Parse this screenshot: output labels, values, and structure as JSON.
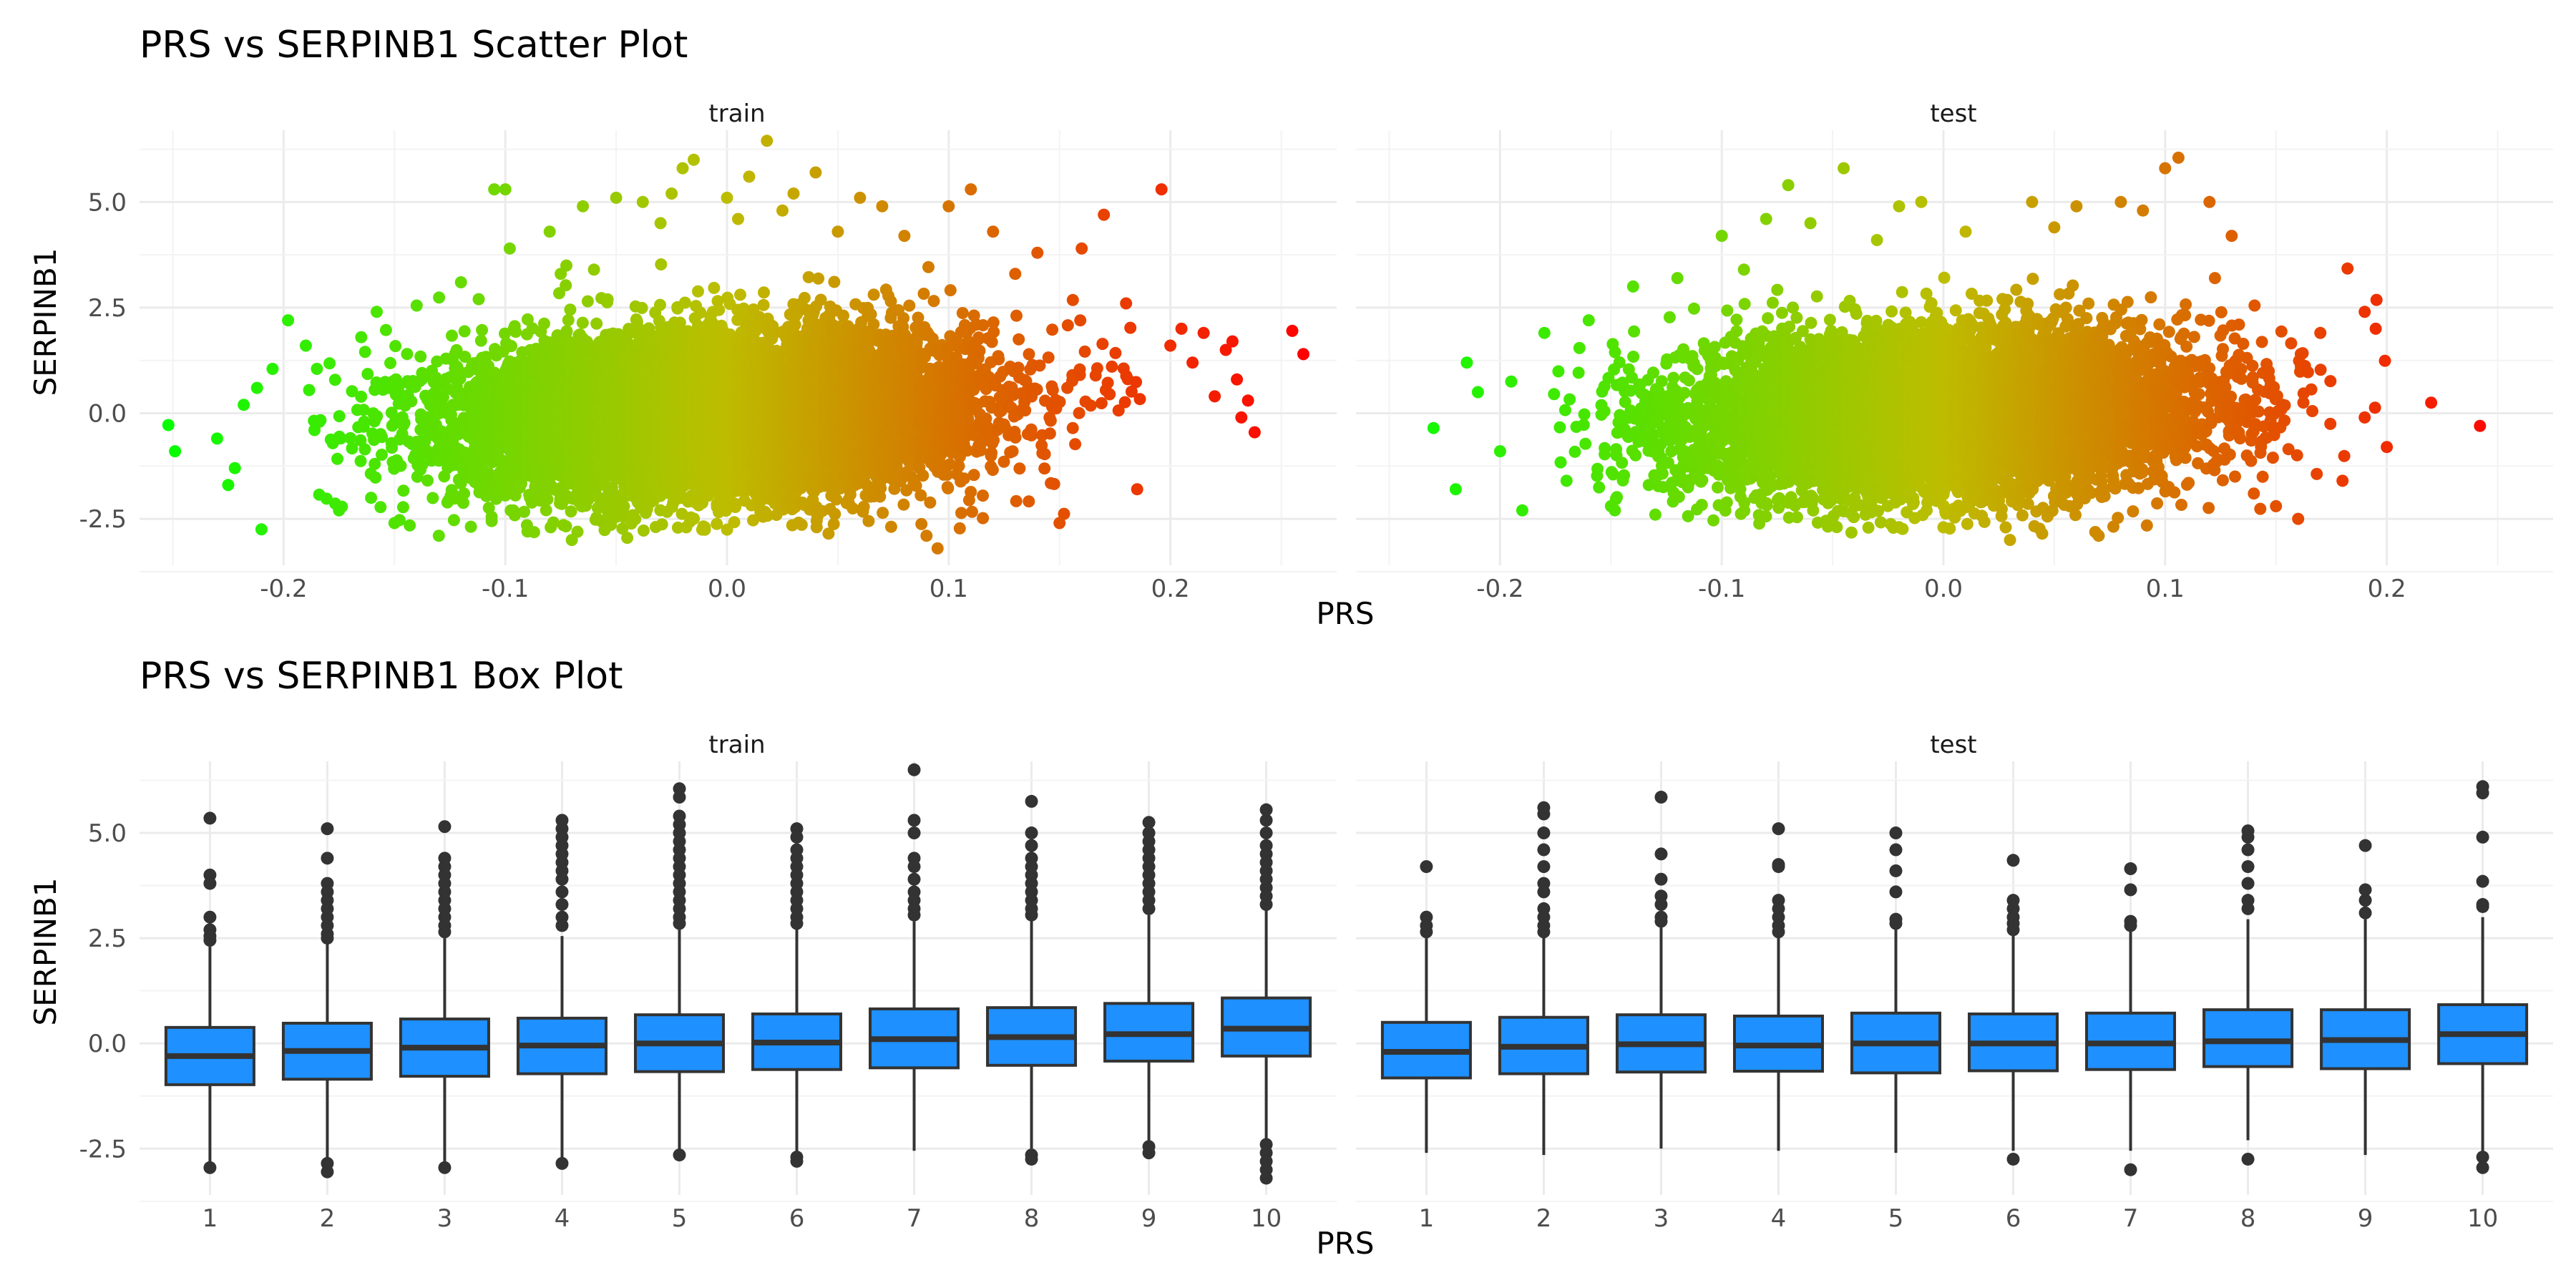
{
  "chart_data": [
    {
      "type": "scatter",
      "title": "PRS vs SERPINB1 Scatter Plot",
      "xlabel": "PRS",
      "ylabel": "SERPINB1",
      "xlim": [
        -0.265,
        0.275
      ],
      "ylim": [
        -3.6,
        6.7
      ],
      "x_ticks": [
        -0.2,
        -0.1,
        0.0,
        0.1,
        0.2
      ],
      "x_tick_labels": [
        "-0.2",
        "-0.1",
        "0.0",
        "0.1",
        "0.2"
      ],
      "y_ticks": [
        -2.5,
        0.0,
        2.5,
        5.0
      ],
      "y_tick_labels": [
        "-2.5",
        "0.0",
        "2.5",
        "5.0"
      ],
      "grid": true,
      "color_scale": {
        "low": "#00ff00",
        "mid": "#bdbd00",
        "high": "#ff0000",
        "range": [
          -0.26,
          0.26
        ]
      },
      "facets": [
        {
          "label": "train",
          "points": [
            [
              -0.252,
              -0.28
            ],
            [
              -0.249,
              -0.9
            ],
            [
              -0.23,
              -0.6
            ],
            [
              -0.225,
              -1.7
            ],
            [
              -0.222,
              -1.3
            ],
            [
              -0.218,
              0.2
            ],
            [
              -0.212,
              0.6
            ],
            [
              -0.21,
              -2.75
            ],
            [
              -0.205,
              1.05
            ],
            [
              -0.198,
              2.2
            ],
            [
              -0.19,
              1.6
            ],
            [
              -0.185,
              1.05
            ],
            [
              -0.175,
              -2.3
            ],
            [
              -0.165,
              1.8
            ],
            [
              -0.158,
              2.4
            ],
            [
              -0.15,
              -2.6
            ],
            [
              -0.14,
              2.55
            ],
            [
              -0.13,
              -2.9
            ],
            [
              -0.12,
              3.1
            ],
            [
              -0.112,
              2.7
            ],
            [
              -0.105,
              5.3
            ],
            [
              -0.1,
              5.3
            ],
            [
              -0.098,
              3.9
            ],
            [
              -0.09,
              -2.8
            ],
            [
              -0.08,
              4.3
            ],
            [
              -0.075,
              3.3
            ],
            [
              -0.07,
              -3.0
            ],
            [
              -0.065,
              4.9
            ],
            [
              -0.06,
              3.4
            ],
            [
              -0.05,
              5.1
            ],
            [
              -0.045,
              -2.95
            ],
            [
              -0.038,
              5.0
            ],
            [
              -0.03,
              4.5
            ],
            [
              -0.025,
              5.2
            ],
            [
              -0.02,
              5.8
            ],
            [
              -0.015,
              6.0
            ],
            [
              -0.01,
              -2.7
            ],
            [
              0.0,
              5.1
            ],
            [
              0.005,
              4.6
            ],
            [
              0.01,
              5.6
            ],
            [
              0.018,
              6.45
            ],
            [
              0.025,
              4.8
            ],
            [
              0.03,
              5.2
            ],
            [
              0.04,
              5.7
            ],
            [
              0.05,
              4.3
            ],
            [
              0.06,
              5.1
            ],
            [
              0.07,
              4.9
            ],
            [
              0.08,
              4.2
            ],
            [
              0.09,
              -2.9
            ],
            [
              0.095,
              -3.2
            ],
            [
              0.1,
              4.9
            ],
            [
              0.11,
              5.3
            ],
            [
              0.12,
              4.3
            ],
            [
              0.13,
              3.3
            ],
            [
              0.14,
              3.8
            ],
            [
              0.15,
              -2.6
            ],
            [
              0.16,
              3.9
            ],
            [
              0.17,
              4.7
            ],
            [
              0.18,
              2.6
            ],
            [
              0.185,
              -1.8
            ],
            [
              0.196,
              5.3
            ],
            [
              0.2,
              1.6
            ],
            [
              0.205,
              2.0
            ],
            [
              0.21,
              1.2
            ],
            [
              0.215,
              1.9
            ],
            [
              0.22,
              0.4
            ],
            [
              0.225,
              1.5
            ],
            [
              0.228,
              1.7
            ],
            [
              0.23,
              0.8
            ],
            [
              0.232,
              -0.1
            ],
            [
              0.235,
              0.3
            ],
            [
              0.238,
              -0.45
            ],
            [
              0.255,
              1.95
            ],
            [
              0.26,
              1.4
            ]
          ],
          "cloud": {
            "x_mean": -0.005,
            "x_sd": 0.058,
            "x_range": [
              -0.19,
              0.2
            ],
            "y_mean": 0.0,
            "y_sd": 0.95,
            "y_range": [
              -2.9,
              3.9
            ],
            "n": 9000
          }
        },
        {
          "label": "test",
          "points": [
            [
              -0.23,
              -0.35
            ],
            [
              -0.22,
              -1.8
            ],
            [
              -0.215,
              1.2
            ],
            [
              -0.21,
              0.5
            ],
            [
              -0.2,
              -0.9
            ],
            [
              -0.195,
              0.75
            ],
            [
              -0.19,
              -2.3
            ],
            [
              -0.18,
              1.9
            ],
            [
              -0.17,
              -1.6
            ],
            [
              -0.16,
              2.2
            ],
            [
              -0.15,
              -2.2
            ],
            [
              -0.14,
              3.0
            ],
            [
              -0.13,
              -2.4
            ],
            [
              -0.12,
              3.2
            ],
            [
              -0.1,
              4.2
            ],
            [
              -0.09,
              3.4
            ],
            [
              -0.08,
              4.6
            ],
            [
              -0.07,
              5.4
            ],
            [
              -0.06,
              4.5
            ],
            [
              -0.05,
              -2.6
            ],
            [
              -0.045,
              5.8
            ],
            [
              -0.03,
              4.1
            ],
            [
              -0.02,
              4.9
            ],
            [
              -0.01,
              5.0
            ],
            [
              0.0,
              -2.7
            ],
            [
              0.01,
              4.3
            ],
            [
              0.03,
              -3.0
            ],
            [
              0.04,
              5.0
            ],
            [
              0.05,
              4.4
            ],
            [
              0.06,
              4.9
            ],
            [
              0.07,
              -2.9
            ],
            [
              0.08,
              5.0
            ],
            [
              0.09,
              4.8
            ],
            [
              0.1,
              5.8
            ],
            [
              0.106,
              6.05
            ],
            [
              0.12,
              5.0
            ],
            [
              0.13,
              4.2
            ],
            [
              0.14,
              -1.9
            ],
            [
              0.15,
              -2.2
            ],
            [
              0.16,
              -2.5
            ],
            [
              0.17,
              1.9
            ],
            [
              0.18,
              -1.6
            ],
            [
              0.19,
              2.4
            ],
            [
              0.195,
              2.0
            ],
            [
              0.2,
              -0.8
            ],
            [
              0.19,
              -0.1
            ],
            [
              0.22,
              0.25
            ],
            [
              0.242,
              -0.3
            ]
          ],
          "cloud": {
            "x_mean": 0.0,
            "x_sd": 0.058,
            "x_range": [
              -0.18,
              0.2
            ],
            "y_mean": 0.0,
            "y_sd": 0.95,
            "y_range": [
              -2.9,
              3.9
            ],
            "n": 7500
          }
        }
      ]
    },
    {
      "type": "box",
      "title": "PRS vs SERPINB1 Box Plot",
      "xlabel": "PRS",
      "ylabel": "SERPINB1",
      "categories": [
        "1",
        "2",
        "3",
        "4",
        "5",
        "6",
        "7",
        "8",
        "9",
        "10"
      ],
      "ylim": [
        -3.6,
        6.7
      ],
      "y_ticks": [
        -2.5,
        0.0,
        2.5,
        5.0
      ],
      "y_tick_labels": [
        "-2.5",
        "0.0",
        "2.5",
        "5.0"
      ],
      "grid": true,
      "box_fill": "#1e90ff",
      "box_stroke": "#333333",
      "facets": [
        {
          "label": "train",
          "boxes": [
            {
              "q1": -0.98,
              "median": -0.3,
              "q3": 0.38,
              "lower": -2.9,
              "upper": 2.3,
              "outliers": [
                5.35,
                4.0,
                3.8,
                3.0,
                2.7,
                2.55,
                2.45,
                -2.95
              ]
            },
            {
              "q1": -0.85,
              "median": -0.18,
              "q3": 0.48,
              "lower": -2.7,
              "upper": 2.35,
              "outliers": [
                5.1,
                4.4,
                3.8,
                3.6,
                3.4,
                3.2,
                3.0,
                2.8,
                2.6,
                2.5,
                -2.85,
                -3.05
              ]
            },
            {
              "q1": -0.78,
              "median": -0.1,
              "q3": 0.58,
              "lower": -2.8,
              "upper": 2.5,
              "outliers": [
                5.15,
                4.4,
                4.2,
                4.0,
                3.8,
                3.6,
                3.4,
                3.2,
                3.0,
                2.8,
                2.65,
                -2.95
              ]
            },
            {
              "q1": -0.72,
              "median": -0.05,
              "q3": 0.6,
              "lower": -2.7,
              "upper": 2.55,
              "outliers": [
                5.3,
                5.1,
                4.9,
                4.7,
                4.5,
                4.3,
                4.1,
                3.9,
                3.6,
                3.3,
                3.0,
                2.8,
                -2.85
              ]
            },
            {
              "q1": -0.67,
              "median": 0.0,
              "q3": 0.68,
              "lower": -2.6,
              "upper": 2.7,
              "outliers": [
                6.05,
                5.85,
                5.4,
                5.2,
                5.0,
                4.8,
                4.6,
                4.4,
                4.2,
                4.0,
                3.8,
                3.6,
                3.4,
                3.2,
                3.0,
                2.85,
                -2.65
              ]
            },
            {
              "q1": -0.62,
              "median": 0.02,
              "q3": 0.7,
              "lower": -2.6,
              "upper": 2.75,
              "outliers": [
                5.1,
                4.9,
                4.6,
                4.4,
                4.2,
                4.0,
                3.8,
                3.6,
                3.4,
                3.2,
                3.0,
                2.85,
                -2.7,
                -2.8
              ]
            },
            {
              "q1": -0.58,
              "median": 0.1,
              "q3": 0.82,
              "lower": -2.55,
              "upper": 2.9,
              "outliers": [
                6.5,
                5.3,
                5.0,
                4.4,
                4.2,
                3.9,
                3.6,
                3.4,
                3.2,
                3.05
              ]
            },
            {
              "q1": -0.52,
              "median": 0.15,
              "q3": 0.85,
              "lower": -2.5,
              "upper": 2.95,
              "outliers": [
                5.75,
                5.0,
                4.7,
                4.4,
                4.2,
                4.0,
                3.8,
                3.6,
                3.4,
                3.2,
                3.05,
                -2.65,
                -2.75
              ]
            },
            {
              "q1": -0.42,
              "median": 0.22,
              "q3": 0.95,
              "lower": -2.35,
              "upper": 3.05,
              "outliers": [
                5.25,
                5.0,
                4.8,
                4.6,
                4.4,
                4.2,
                4.0,
                3.8,
                3.6,
                3.4,
                3.2,
                -2.45,
                -2.6
              ]
            },
            {
              "q1": -0.3,
              "median": 0.35,
              "q3": 1.08,
              "lower": -2.3,
              "upper": 3.2,
              "outliers": [
                5.55,
                5.3,
                5.0,
                4.7,
                4.5,
                4.3,
                4.1,
                3.9,
                3.7,
                3.5,
                3.3,
                -2.4,
                -2.6,
                -2.8,
                -3.0,
                -3.2
              ]
            }
          ]
        },
        {
          "label": "test",
          "boxes": [
            {
              "q1": -0.82,
              "median": -0.2,
              "q3": 0.5,
              "lower": -2.6,
              "upper": 2.5,
              "outliers": [
                4.2,
                3.0,
                2.8,
                2.65
              ]
            },
            {
              "q1": -0.72,
              "median": -0.08,
              "q3": 0.62,
              "lower": -2.65,
              "upper": 2.6,
              "outliers": [
                5.6,
                5.45,
                5.0,
                4.6,
                4.2,
                3.8,
                3.6,
                3.2,
                3.0,
                2.8,
                2.65
              ]
            },
            {
              "q1": -0.68,
              "median": -0.02,
              "q3": 0.68,
              "lower": -2.5,
              "upper": 2.75,
              "outliers": [
                5.85,
                4.5,
                3.9,
                3.5,
                3.3,
                3.0,
                2.9
              ]
            },
            {
              "q1": -0.66,
              "median": -0.05,
              "q3": 0.65,
              "lower": -2.55,
              "upper": 2.6,
              "outliers": [
                5.1,
                4.25,
                4.2,
                3.4,
                3.2,
                3.0,
                2.8,
                2.65
              ]
            },
            {
              "q1": -0.7,
              "median": 0.0,
              "q3": 0.72,
              "lower": -2.6,
              "upper": 2.7,
              "outliers": [
                5.0,
                4.6,
                4.1,
                3.6,
                2.95,
                2.85
              ]
            },
            {
              "q1": -0.65,
              "median": 0.0,
              "q3": 0.7,
              "lower": -2.55,
              "upper": 2.6,
              "outliers": [
                4.35,
                3.4,
                3.2,
                3.0,
                2.85,
                2.7,
                -2.75
              ]
            },
            {
              "q1": -0.62,
              "median": 0.0,
              "q3": 0.72,
              "lower": -2.55,
              "upper": 2.7,
              "outliers": [
                4.15,
                3.65,
                2.9,
                2.8,
                -3.0
              ]
            },
            {
              "q1": -0.55,
              "median": 0.05,
              "q3": 0.8,
              "lower": -2.3,
              "upper": 2.95,
              "outliers": [
                5.05,
                4.9,
                4.6,
                4.2,
                3.8,
                3.4,
                3.2,
                -2.75
              ]
            },
            {
              "q1": -0.6,
              "median": 0.08,
              "q3": 0.8,
              "lower": -2.65,
              "upper": 2.95,
              "outliers": [
                4.7,
                3.65,
                3.4,
                3.1
              ]
            },
            {
              "q1": -0.48,
              "median": 0.22,
              "q3": 0.92,
              "lower": -2.55,
              "upper": 3.0,
              "outliers": [
                6.1,
                5.95,
                4.9,
                3.85,
                3.3,
                3.25,
                -2.7,
                -2.95
              ]
            }
          ]
        }
      ]
    }
  ]
}
